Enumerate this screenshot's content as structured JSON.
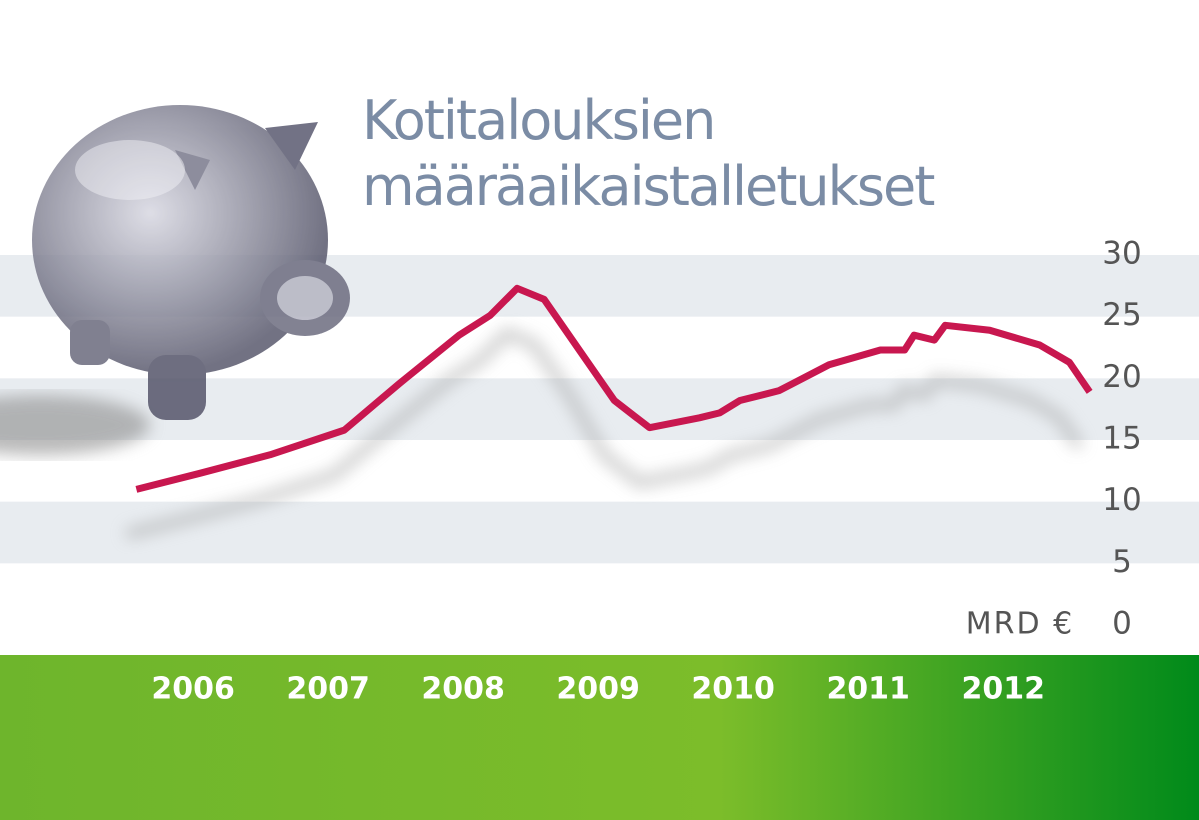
{
  "chart_data": {
    "type": "line",
    "title": "Kotitalouksien määräaikaistalletukset",
    "y_label": "MRD €",
    "x": [
      2006.08,
      2006.55,
      2007.07,
      2007.62,
      2008.03,
      2008.47,
      2008.7,
      2008.9,
      2009.1,
      2009.36,
      2009.62,
      2009.88,
      2010.25,
      2010.4,
      2010.55,
      2010.84,
      2011.21,
      2011.59,
      2011.77,
      2011.84,
      2011.99,
      2012.07,
      2012.4,
      2012.77,
      2012.99,
      2013.14
    ],
    "series": [
      {
        "color": "#c8174f",
        "values": [
          11,
          12.3,
          13.8,
          15.8,
          19.6,
          23.5,
          25.1,
          27.3,
          26.4,
          22.3,
          18.2,
          16,
          16.8,
          17.2,
          18.2,
          19,
          21.1,
          22.3,
          22.3,
          23.5,
          23.1,
          24.3,
          23.9,
          22.7,
          21.3,
          18.9
        ]
      }
    ],
    "xlim": [
      2005.07,
      2013.95
    ],
    "xticks": [
      {
        "value": 2006.5,
        "label": "2006"
      },
      {
        "value": 2007.5,
        "label": "2007"
      },
      {
        "value": 2008.5,
        "label": "2008"
      },
      {
        "value": 2009.5,
        "label": "2009"
      },
      {
        "value": 2010.5,
        "label": "2010"
      },
      {
        "value": 2011.5,
        "label": "2011"
      },
      {
        "value": 2012.5,
        "label": "2012"
      }
    ],
    "ylim": [
      0,
      30
    ],
    "yticks": [
      0,
      5,
      10,
      15,
      20,
      25,
      30
    ],
    "grid": true
  }
}
